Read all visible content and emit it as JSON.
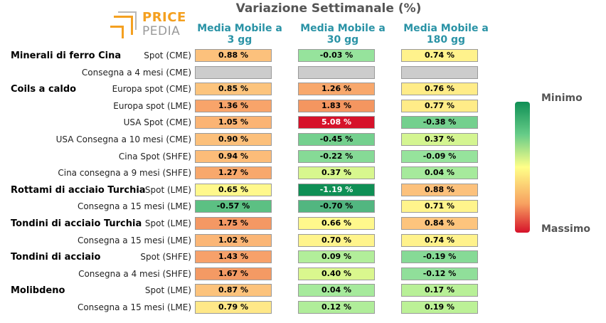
{
  "title": "Variazione Settimanale (%)",
  "logo": {
    "line1": "PRICE",
    "line2": "PEDIA"
  },
  "legend": {
    "top": "Minimo",
    "bottom": "Massimo"
  },
  "colors": {
    "header": "#2a93a6",
    "title": "#555555",
    "logo_orange": "#f4a020",
    "gray_cell": "#cccccc"
  },
  "chart_data": {
    "type": "table",
    "title": "Variazione Settimanale (%)",
    "columns": [
      {
        "line1": "Media Mobile a",
        "line2": "3 gg"
      },
      {
        "line1": "Media Mobile a",
        "line2": "30 gg"
      },
      {
        "line1": "Media Mobile a",
        "line2": "180 gg"
      }
    ],
    "rows": [
      {
        "group": "Minerali di ferro Cina",
        "label": "Spot (CME)",
        "values": [
          "0.88 %",
          "-0.03 %",
          "0.74 %"
        ],
        "numeric": [
          0.88,
          -0.03,
          0.74
        ],
        "colors": [
          "#fcc17c",
          "#96e39c",
          "#fff28c"
        ]
      },
      {
        "group": "",
        "label": "Consegna a 4 mesi (CME)",
        "values": [
          "",
          "",
          ""
        ],
        "numeric": [
          null,
          null,
          null
        ],
        "colors": [
          "#cccccc",
          "#cccccc",
          "#cccccc"
        ]
      },
      {
        "group": "Coils a caldo",
        "label": "Europa spot (CME)",
        "values": [
          "0.85 %",
          "1.26 %",
          "0.76 %"
        ],
        "numeric": [
          0.85,
          1.26,
          0.76
        ],
        "colors": [
          "#fcc47d",
          "#f8a86c",
          "#ffec88"
        ]
      },
      {
        "group": "",
        "label": "Europa spot (LME)",
        "values": [
          "1.36 %",
          "1.83 %",
          "0.77 %"
        ],
        "numeric": [
          1.36,
          1.83,
          0.77
        ],
        "colors": [
          "#f8a46a",
          "#f49660",
          "#ffec88"
        ]
      },
      {
        "group": "",
        "label": "USA Spot (CME)",
        "values": [
          "1.05 %",
          "5.08 %",
          "-0.38 %"
        ],
        "numeric": [
          1.05,
          5.08,
          -0.38
        ],
        "colors": [
          "#fbb474",
          "#d6122a",
          "#74d08e"
        ]
      },
      {
        "group": "",
        "label": "USA Consegna a 10 mesi (CME)",
        "values": [
          "0.90 %",
          "-0.45 %",
          "0.37 %"
        ],
        "numeric": [
          0.9,
          -0.45,
          0.37
        ],
        "colors": [
          "#fcc07b",
          "#74d08e",
          "#d4f591"
        ]
      },
      {
        "group": "",
        "label": "Cina Spot (SHFE)",
        "values": [
          "0.94 %",
          "-0.22 %",
          "-0.09 %"
        ],
        "numeric": [
          0.94,
          -0.22,
          -0.09
        ],
        "colors": [
          "#fcbc79",
          "#86da96",
          "#96e39c"
        ]
      },
      {
        "group": "",
        "label": "Cina consegna a 9 mesi (SHFE)",
        "values": [
          "1.27 %",
          "0.37 %",
          "0.04 %"
        ],
        "numeric": [
          1.27,
          0.37,
          0.04
        ],
        "colors": [
          "#f8a86c",
          "#d8f78e",
          "#a6ea9c"
        ]
      },
      {
        "group": "Rottami di acciaio Turchia",
        "label": "Spot (LME)",
        "values": [
          "0.65 %",
          "-1.19 %",
          "0.88 %"
        ],
        "numeric": [
          0.65,
          -1.19,
          0.88
        ],
        "colors": [
          "#fff88c",
          "#0f8f55",
          "#fcc17c"
        ]
      },
      {
        "group": "",
        "label": "Consegna a 15 mesi (LME)",
        "values": [
          "-0.57 %",
          "-0.70 %",
          "0.71 %"
        ],
        "numeric": [
          -0.57,
          -0.7,
          0.71
        ],
        "colors": [
          "#5cc083",
          "#52b680",
          "#fff48c"
        ]
      },
      {
        "group": "Tondini di acciaio Turchia",
        "label": "Spot (LME)",
        "values": [
          "1.75 %",
          "0.66 %",
          "0.84 %"
        ],
        "numeric": [
          1.75,
          0.66,
          0.84
        ],
        "colors": [
          "#f49864",
          "#fff88c",
          "#fdc47d"
        ]
      },
      {
        "group": "",
        "label": "Consegna a 15 mesi (LME)",
        "values": [
          "1.02 %",
          "0.70 %",
          "0.74 %"
        ],
        "numeric": [
          1.02,
          0.7,
          0.74
        ],
        "colors": [
          "#fbb676",
          "#fff48c",
          "#fff28c"
        ]
      },
      {
        "group": "Tondini di acciaio",
        "label": "Spot (SHFE)",
        "values": [
          "1.43 %",
          "0.09 %",
          "-0.19 %"
        ],
        "numeric": [
          1.43,
          0.09,
          -0.19
        ],
        "colors": [
          "#f7a16a",
          "#b2ee9a",
          "#86da96"
        ]
      },
      {
        "group": "",
        "label": "Consegna a 4 mesi (SHFE)",
        "values": [
          "1.67 %",
          "0.40 %",
          "-0.12 %"
        ],
        "numeric": [
          1.67,
          0.4,
          -0.12
        ],
        "colors": [
          "#f49a64",
          "#daf78e",
          "#90df9a"
        ]
      },
      {
        "group": "Molibdeno",
        "label": "Spot (LME)",
        "values": [
          "0.87 %",
          "0.04 %",
          "0.17 %"
        ],
        "numeric": [
          0.87,
          0.04,
          0.17
        ],
        "colors": [
          "#fcc37c",
          "#a6ea9c",
          "#b8f097"
        ]
      },
      {
        "group": "",
        "label": "Consegna a 15 mesi (LME)",
        "values": [
          "0.79 %",
          "0.12 %",
          "0.19 %"
        ],
        "numeric": [
          0.79,
          0.12,
          0.19
        ],
        "colors": [
          "#ffe888",
          "#b0ed9a",
          "#bcf197"
        ]
      }
    ]
  }
}
